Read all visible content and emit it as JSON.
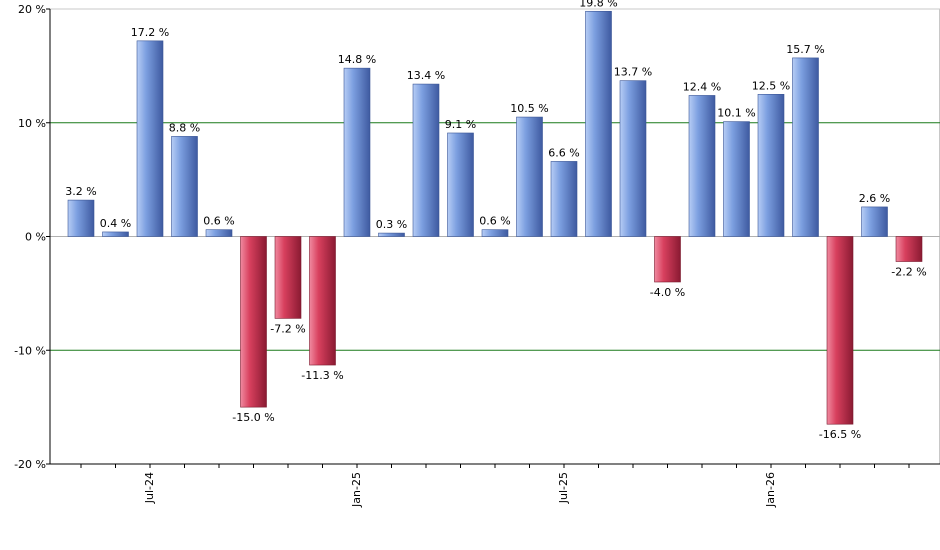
{
  "chart_data": {
    "type": "bar",
    "title": "",
    "xlabel": "",
    "ylabel": "",
    "ylim": [
      -20,
      20
    ],
    "yticks": [
      {
        "value": 20,
        "label": "20 %"
      },
      {
        "value": 10,
        "label": "10 %"
      },
      {
        "value": 0,
        "label": "0 %"
      },
      {
        "value": -10,
        "label": "-10 %"
      },
      {
        "value": -20,
        "label": "-20 %"
      }
    ],
    "gridlines": [
      10,
      -10
    ],
    "grid_color": "#1a7a1a",
    "positive_color": "#6f93d8",
    "negative_color": "#c8304e",
    "x_tick_labels": [
      {
        "index": 2,
        "label": "Jul-24"
      },
      {
        "index": 8,
        "label": "Jan-25"
      },
      {
        "index": 14,
        "label": "Jul-25"
      },
      {
        "index": 20,
        "label": "Jan-26"
      }
    ],
    "values": [
      3.2,
      0.4,
      17.2,
      8.8,
      0.6,
      -15.0,
      -7.2,
      -11.3,
      14.8,
      0.3,
      13.4,
      9.1,
      0.6,
      10.5,
      6.6,
      19.8,
      13.7,
      -4.0,
      12.4,
      10.1,
      12.5,
      15.7,
      -16.5,
      2.6,
      -2.2
    ],
    "value_labels": [
      "3.2 %",
      "0.4 %",
      "17.2 %",
      "8.8 %",
      "0.6 %",
      "-15.0 %",
      "-7.2 %",
      "-11.3 %",
      "14.8 %",
      "0.3 %",
      "13.4 %",
      "9.1 %",
      "0.6 %",
      "10.5 %",
      "6.6 %",
      "19.8 %",
      "13.7 %",
      "-4.0 %",
      "12.4 %",
      "10.1 %",
      "12.5 %",
      "15.7 %",
      "-16.5 %",
      "2.6 %",
      "-2.2 %"
    ]
  }
}
